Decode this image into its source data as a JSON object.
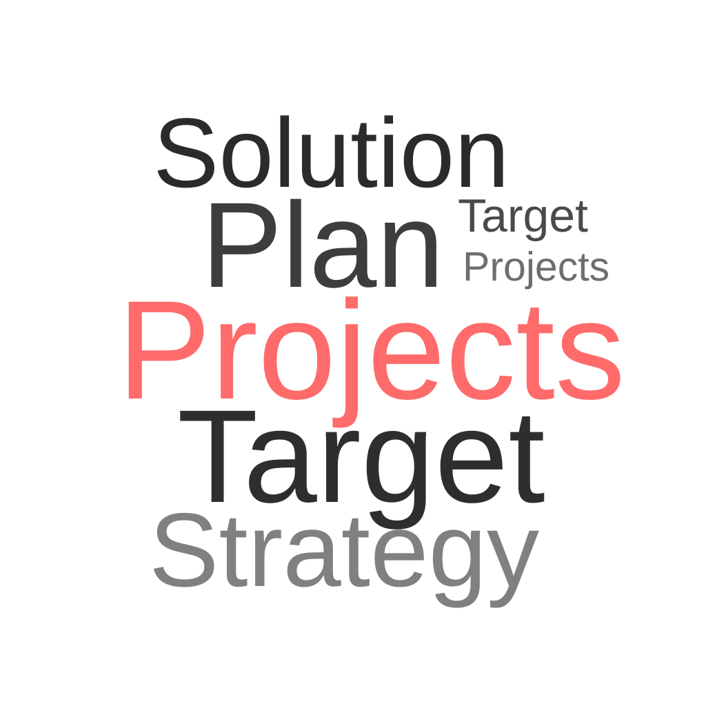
{
  "words": [
    {
      "id": "w-solution",
      "text": "Solution",
      "color": "#2b2b2b"
    },
    {
      "id": "w-plan",
      "text": "Plan",
      "color": "#3d3d3d"
    },
    {
      "id": "w-target-small",
      "text": "Target",
      "color": "#4a4a4a"
    },
    {
      "id": "w-projects-small",
      "text": "Projects",
      "color": "#6e6e6e"
    },
    {
      "id": "w-projects",
      "text": "Projects",
      "color": "#ff6b6b"
    },
    {
      "id": "w-target",
      "text": "Target",
      "color": "#2e2e2e"
    },
    {
      "id": "w-strategy",
      "text": "Strategy",
      "color": "#808080"
    }
  ]
}
